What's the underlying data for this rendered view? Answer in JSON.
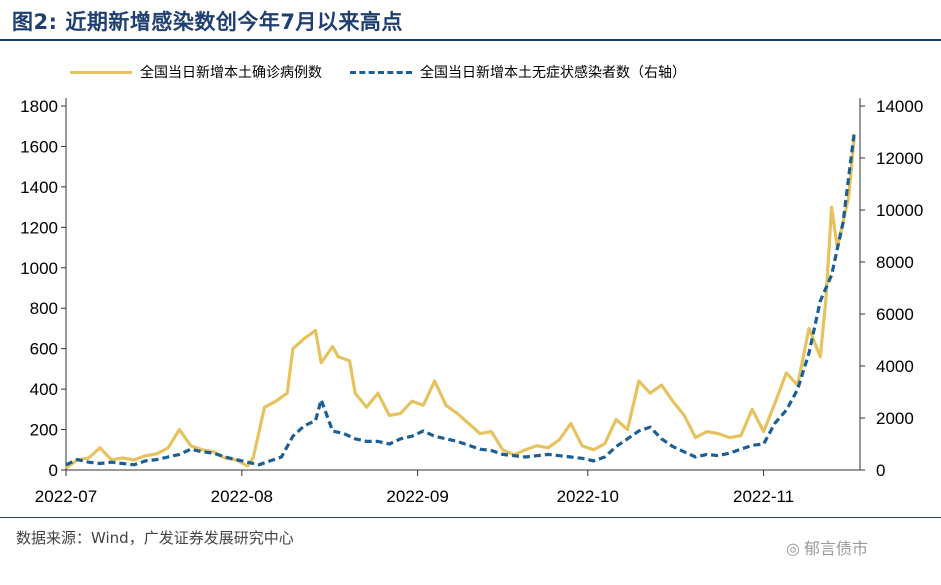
{
  "title": "图2:  近期新增感染数创今年7月以来高点",
  "source": "数据来源：Wind，广发证券发展研究中心",
  "watermark": {
    "icon": "wechat-icon",
    "text": "郁言债市"
  },
  "colors": {
    "title": "#1f3f72",
    "confirmed": "#e6c35e",
    "asymptomatic": "#1c5f96"
  },
  "chart_data": {
    "type": "line",
    "title": "",
    "xlabel": "",
    "ylabel_left": "",
    "ylabel_right": "",
    "x_ticks": [
      "2022-07",
      "2022-08",
      "2022-09",
      "2022-10",
      "2022-11"
    ],
    "y_left": {
      "min": 0,
      "max": 1800,
      "ticks": [
        0,
        200,
        400,
        600,
        800,
        1000,
        1200,
        1400,
        1600,
        1800
      ]
    },
    "y_right": {
      "min": 0,
      "max": 14000,
      "ticks": [
        0,
        2000,
        4000,
        6000,
        8000,
        10000,
        12000,
        14000
      ]
    },
    "legend_position": "top",
    "grid": false,
    "series": [
      {
        "name": "全国当日新增本土确诊病例数",
        "axis": "left",
        "style": "solid",
        "points": [
          [
            "2022-07-01",
            10
          ],
          [
            "2022-07-03",
            50
          ],
          [
            "2022-07-05",
            60
          ],
          [
            "2022-07-07",
            110
          ],
          [
            "2022-07-09",
            50
          ],
          [
            "2022-07-11",
            60
          ],
          [
            "2022-07-13",
            50
          ],
          [
            "2022-07-15",
            70
          ],
          [
            "2022-07-17",
            80
          ],
          [
            "2022-07-19",
            110
          ],
          [
            "2022-07-21",
            200
          ],
          [
            "2022-07-23",
            120
          ],
          [
            "2022-07-25",
            100
          ],
          [
            "2022-07-27",
            90
          ],
          [
            "2022-07-29",
            60
          ],
          [
            "2022-07-31",
            50
          ],
          [
            "2022-08-02",
            20
          ],
          [
            "2022-08-03",
            60
          ],
          [
            "2022-08-05",
            310
          ],
          [
            "2022-08-07",
            340
          ],
          [
            "2022-08-09",
            380
          ],
          [
            "2022-08-10",
            600
          ],
          [
            "2022-08-12",
            650
          ],
          [
            "2022-08-14",
            690
          ],
          [
            "2022-08-15",
            530
          ],
          [
            "2022-08-17",
            610
          ],
          [
            "2022-08-18",
            560
          ],
          [
            "2022-08-20",
            540
          ],
          [
            "2022-08-21",
            380
          ],
          [
            "2022-08-23",
            310
          ],
          [
            "2022-08-25",
            380
          ],
          [
            "2022-08-27",
            270
          ],
          [
            "2022-08-29",
            280
          ],
          [
            "2022-08-31",
            340
          ],
          [
            "2022-09-02",
            320
          ],
          [
            "2022-09-04",
            440
          ],
          [
            "2022-09-06",
            320
          ],
          [
            "2022-09-08",
            280
          ],
          [
            "2022-09-10",
            230
          ],
          [
            "2022-09-12",
            180
          ],
          [
            "2022-09-14",
            190
          ],
          [
            "2022-09-16",
            100
          ],
          [
            "2022-09-18",
            75
          ],
          [
            "2022-09-20",
            100
          ],
          [
            "2022-09-22",
            120
          ],
          [
            "2022-09-24",
            110
          ],
          [
            "2022-09-26",
            150
          ],
          [
            "2022-09-28",
            230
          ],
          [
            "2022-09-30",
            120
          ],
          [
            "2022-10-02",
            100
          ],
          [
            "2022-10-04",
            130
          ],
          [
            "2022-10-06",
            250
          ],
          [
            "2022-10-08",
            200
          ],
          [
            "2022-10-10",
            440
          ],
          [
            "2022-10-12",
            380
          ],
          [
            "2022-10-14",
            420
          ],
          [
            "2022-10-16",
            340
          ],
          [
            "2022-10-18",
            270
          ],
          [
            "2022-10-20",
            160
          ],
          [
            "2022-10-22",
            190
          ],
          [
            "2022-10-24",
            180
          ],
          [
            "2022-10-26",
            160
          ],
          [
            "2022-10-28",
            170
          ],
          [
            "2022-10-30",
            300
          ],
          [
            "2022-11-01",
            190
          ],
          [
            "2022-11-03",
            330
          ],
          [
            "2022-11-05",
            480
          ],
          [
            "2022-11-07",
            420
          ],
          [
            "2022-11-09",
            700
          ],
          [
            "2022-11-11",
            560
          ],
          [
            "2022-11-12",
            850
          ],
          [
            "2022-11-13",
            1300
          ],
          [
            "2022-11-14",
            1100
          ],
          [
            "2022-11-16",
            1350
          ],
          [
            "2022-11-17",
            1650
          ]
        ]
      },
      {
        "name": "全国当日新增本土无症状感染者数（右轴）",
        "axis": "right",
        "style": "dashed",
        "points": [
          [
            "2022-07-01",
            200
          ],
          [
            "2022-07-03",
            400
          ],
          [
            "2022-07-05",
            300
          ],
          [
            "2022-07-07",
            250
          ],
          [
            "2022-07-09",
            300
          ],
          [
            "2022-07-11",
            250
          ],
          [
            "2022-07-13",
            200
          ],
          [
            "2022-07-15",
            350
          ],
          [
            "2022-07-17",
            400
          ],
          [
            "2022-07-19",
            500
          ],
          [
            "2022-07-21",
            600
          ],
          [
            "2022-07-23",
            800
          ],
          [
            "2022-07-25",
            700
          ],
          [
            "2022-07-27",
            650
          ],
          [
            "2022-07-29",
            500
          ],
          [
            "2022-07-31",
            400
          ],
          [
            "2022-08-02",
            300
          ],
          [
            "2022-08-04",
            200
          ],
          [
            "2022-08-06",
            350
          ],
          [
            "2022-08-08",
            500
          ],
          [
            "2022-08-10",
            1300
          ],
          [
            "2022-08-12",
            1700
          ],
          [
            "2022-08-14",
            1900
          ],
          [
            "2022-08-15",
            2700
          ],
          [
            "2022-08-17",
            1500
          ],
          [
            "2022-08-19",
            1400
          ],
          [
            "2022-08-21",
            1200
          ],
          [
            "2022-08-23",
            1100
          ],
          [
            "2022-08-25",
            1100
          ],
          [
            "2022-08-27",
            1000
          ],
          [
            "2022-08-29",
            1200
          ],
          [
            "2022-08-31",
            1300
          ],
          [
            "2022-09-02",
            1500
          ],
          [
            "2022-09-04",
            1300
          ],
          [
            "2022-09-06",
            1200
          ],
          [
            "2022-09-08",
            1100
          ],
          [
            "2022-09-10",
            950
          ],
          [
            "2022-09-12",
            800
          ],
          [
            "2022-09-14",
            750
          ],
          [
            "2022-09-16",
            600
          ],
          [
            "2022-09-18",
            550
          ],
          [
            "2022-09-20",
            500
          ],
          [
            "2022-09-22",
            550
          ],
          [
            "2022-09-24",
            600
          ],
          [
            "2022-09-26",
            550
          ],
          [
            "2022-09-28",
            500
          ],
          [
            "2022-09-30",
            450
          ],
          [
            "2022-10-02",
            350
          ],
          [
            "2022-10-04",
            500
          ],
          [
            "2022-10-06",
            900
          ],
          [
            "2022-10-08",
            1200
          ],
          [
            "2022-10-10",
            1500
          ],
          [
            "2022-10-12",
            1650
          ],
          [
            "2022-10-14",
            1200
          ],
          [
            "2022-10-16",
            900
          ],
          [
            "2022-10-18",
            700
          ],
          [
            "2022-10-20",
            500
          ],
          [
            "2022-10-22",
            600
          ],
          [
            "2022-10-24",
            550
          ],
          [
            "2022-10-26",
            650
          ],
          [
            "2022-10-28",
            800
          ],
          [
            "2022-10-30",
            950
          ],
          [
            "2022-11-01",
            1000
          ],
          [
            "2022-11-03",
            1800
          ],
          [
            "2022-11-05",
            2300
          ],
          [
            "2022-11-07",
            3100
          ],
          [
            "2022-11-09",
            4500
          ],
          [
            "2022-11-11",
            6500
          ],
          [
            "2022-11-13",
            7500
          ],
          [
            "2022-11-15",
            9500
          ],
          [
            "2022-11-17",
            13000
          ]
        ]
      }
    ]
  }
}
